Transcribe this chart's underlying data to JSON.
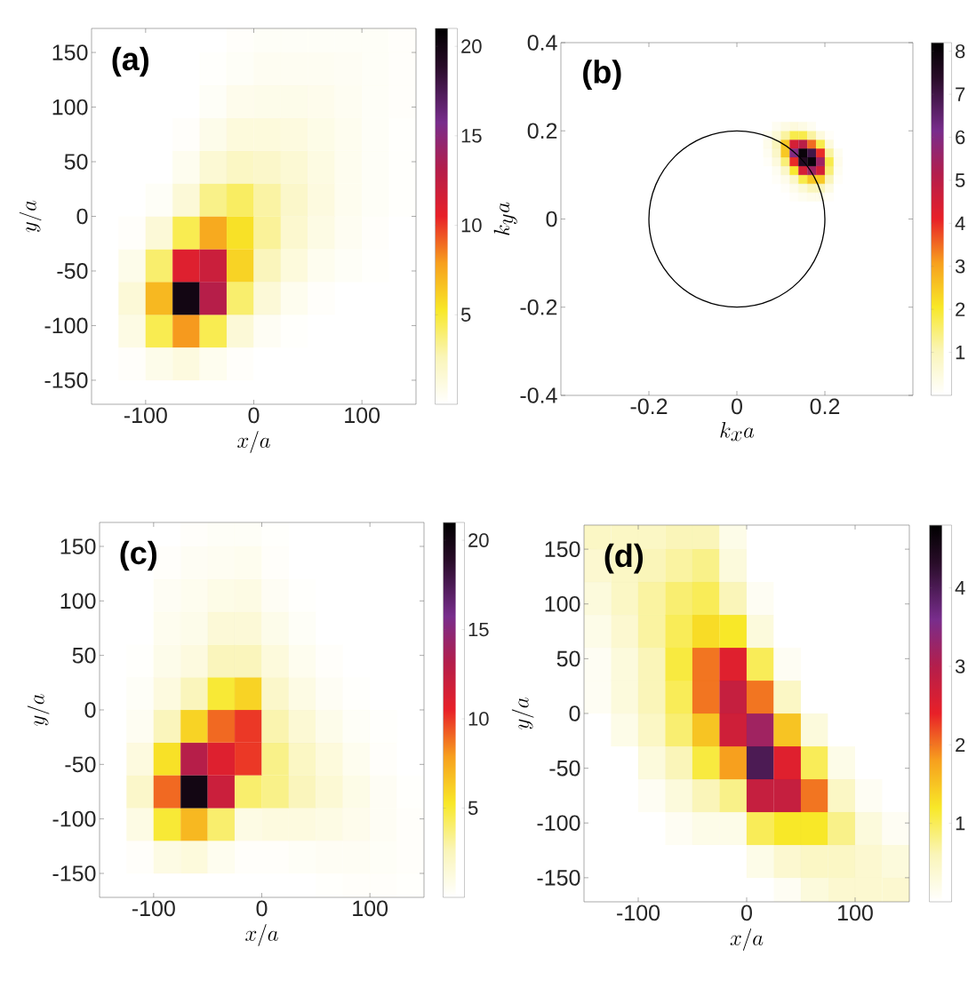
{
  "chart_data": [
    {
      "type": "heatmap",
      "title": "(a)",
      "xlabel": "x/a",
      "ylabel": "y/a",
      "x": [
        -137.5,
        -112.5,
        -87.5,
        -62.5,
        -37.5,
        -12.5,
        12.5,
        37.5,
        62.5,
        87.5,
        112.5,
        137.5
      ],
      "y": [
        165,
        135,
        105,
        75,
        45,
        15,
        -15,
        -45,
        -75,
        -105,
        -135,
        -165
      ],
      "cells": [
        [
          0,
          0,
          0,
          0,
          0,
          0.2,
          0.3,
          0.3,
          0.3,
          0.3,
          0.3,
          0.2
        ],
        [
          0,
          0,
          0,
          0,
          0.1,
          0.3,
          0.5,
          0.5,
          0.5,
          0.4,
          0.3,
          0.2
        ],
        [
          0,
          0,
          0,
          0,
          0.3,
          0.7,
          0.8,
          0.8,
          0.7,
          0.5,
          0.3,
          0.2
        ],
        [
          0,
          0,
          0,
          0.2,
          0.8,
          1.3,
          1.3,
          1.2,
          0.9,
          0.6,
          0.3,
          0.1
        ],
        [
          0,
          0,
          0,
          0.6,
          1.6,
          2.2,
          2,
          1.6,
          1.1,
          0.6,
          0.3,
          0.1
        ],
        [
          0,
          0,
          0.3,
          1.5,
          3.5,
          4.2,
          3,
          2,
          1.2,
          0.6,
          0.3,
          0.1
        ],
        [
          0,
          0.2,
          1.5,
          4.5,
          7.5,
          5.5,
          3.2,
          1.8,
          1,
          0.5,
          0.2,
          0
        ],
        [
          0,
          0.8,
          4,
          11,
          12,
          6,
          2.5,
          1.3,
          0.6,
          0.3,
          0.1,
          0
        ],
        [
          0,
          1.5,
          7,
          20,
          13,
          4,
          1.5,
          0.6,
          0.2,
          0,
          0,
          0
        ],
        [
          0,
          1,
          4.5,
          8,
          4.5,
          1.5,
          0.4,
          0.1,
          0,
          0,
          0,
          0
        ],
        [
          0,
          0.2,
          0.8,
          1.2,
          0.6,
          0.2,
          0,
          0,
          0,
          0,
          0,
          0
        ],
        [
          0,
          0,
          0,
          0,
          0,
          0,
          0,
          0,
          0,
          0,
          0,
          0
        ]
      ],
      "xlim": [
        -150,
        150
      ],
      "ylim": [
        -172,
        172
      ],
      "xticks": [
        -100,
        0,
        100
      ],
      "yticks": [
        -150,
        -100,
        -50,
        0,
        50,
        100,
        150
      ],
      "clim": [
        0,
        21
      ],
      "cticks": [
        5,
        10,
        15,
        20
      ]
    },
    {
      "type": "heatmap",
      "title": "(b)",
      "xlabel": "k_xa",
      "ylabel": "k_ya",
      "x": [
        0.07,
        0.09,
        0.11,
        0.13,
        0.15,
        0.17,
        0.19,
        0.21,
        0.23
      ],
      "y": [
        0.21,
        0.19,
        0.17,
        0.15,
        0.13,
        0.11,
        0.09,
        0.07,
        0.05
      ],
      "cells": [
        [
          0,
          0.2,
          0.4,
          0.5,
          0.4,
          0.2,
          0,
          0,
          0
        ],
        [
          0.2,
          0.6,
          1.2,
          1.8,
          1.8,
          1.2,
          0.5,
          0.1,
          0
        ],
        [
          0.3,
          1,
          2.5,
          4.5,
          5,
          3.5,
          1.8,
          0.5,
          0
        ],
        [
          0.2,
          0.8,
          2.5,
          6,
          8,
          7,
          4,
          1.2,
          0.2
        ],
        [
          0.1,
          0.5,
          1.5,
          4,
          7.5,
          8,
          5.5,
          1.8,
          0.3
        ],
        [
          0,
          0.2,
          0.8,
          2,
          4.5,
          5.5,
          4.5,
          1.5,
          0.2
        ],
        [
          0,
          0.1,
          0.3,
          0.8,
          1.8,
          2.5,
          2.5,
          1,
          0.1
        ],
        [
          0,
          0,
          0.1,
          0.3,
          0.6,
          1,
          1,
          0.4,
          0
        ],
        [
          0,
          0,
          0,
          0.1,
          0.2,
          0.3,
          0.3,
          0.1,
          0
        ]
      ],
      "xlim": [
        -0.4,
        0.4
      ],
      "ylim": [
        -0.4,
        0.4
      ],
      "xticks": [
        -0.2,
        0,
        0.2
      ],
      "yticks": [
        -0.4,
        -0.2,
        0,
        0.2,
        0.4
      ],
      "clim": [
        0,
        8.2
      ],
      "cticks": [
        1,
        2,
        3,
        4,
        5,
        6,
        7,
        8
      ]
    },
    {
      "type": "heatmap",
      "title": "(c)",
      "xlabel": "x/a",
      "ylabel": "y/a",
      "x": [
        -137.5,
        -112.5,
        -87.5,
        -62.5,
        -37.5,
        -12.5,
        12.5,
        37.5,
        62.5,
        87.5,
        112.5,
        137.5
      ],
      "y": [
        165,
        135,
        105,
        75,
        45,
        15,
        -15,
        -45,
        -75,
        -105,
        -135,
        -165
      ],
      "cells": [
        [
          0,
          0,
          0,
          0.2,
          0.3,
          0.3,
          0.1,
          0,
          0,
          0,
          0,
          0
        ],
        [
          0,
          0,
          0.2,
          0.4,
          0.5,
          0.6,
          0.2,
          0,
          0,
          0,
          0,
          0
        ],
        [
          0,
          0,
          0.4,
          0.6,
          0.9,
          1,
          0.4,
          0.1,
          0,
          0,
          0,
          0
        ],
        [
          0,
          0,
          0.6,
          0.8,
          1.5,
          1.5,
          0.8,
          0.3,
          0,
          0,
          0,
          0
        ],
        [
          0,
          0.1,
          0.8,
          1.2,
          2.5,
          2.5,
          1.3,
          0.6,
          0.2,
          0,
          0,
          0
        ],
        [
          0,
          0.3,
          1.2,
          2.5,
          5,
          6,
          2,
          1,
          0.4,
          0.1,
          0,
          0
        ],
        [
          0,
          0.5,
          2.5,
          6,
          9,
          10,
          2.8,
          1.6,
          0.8,
          0.3,
          0.1,
          0
        ],
        [
          0,
          1.2,
          5.5,
          13,
          11,
          10,
          3.5,
          2.2,
          1.3,
          0.6,
          0.2,
          0
        ],
        [
          0,
          2,
          9,
          20,
          12,
          4,
          3.5,
          2.5,
          1.6,
          0.9,
          0.4,
          0.1
        ],
        [
          0,
          1,
          5,
          7,
          4,
          1,
          1.2,
          1.2,
          1,
          0.7,
          0.4,
          0.2
        ],
        [
          0,
          0.2,
          1,
          1.3,
          0.6,
          0.2,
          0.2,
          0.3,
          0.4,
          0.4,
          0.3,
          0.2
        ],
        [
          0,
          0,
          0,
          0,
          0,
          0,
          0,
          0,
          0.1,
          0.2,
          0.2,
          0.1
        ]
      ],
      "xlim": [
        -150,
        150
      ],
      "ylim": [
        -172,
        172
      ],
      "xticks": [
        -100,
        0,
        100
      ],
      "yticks": [
        -150,
        -100,
        -50,
        0,
        50,
        100,
        150
      ],
      "clim": [
        0,
        21
      ],
      "cticks": [
        5,
        10,
        15,
        20
      ]
    },
    {
      "type": "heatmap",
      "title": "(d)",
      "xlabel": "x/a",
      "ylabel": "y/a",
      "x": [
        -137.5,
        -112.5,
        -87.5,
        -62.5,
        -37.5,
        -12.5,
        12.5,
        37.5,
        62.5,
        87.5,
        112.5,
        137.5
      ],
      "y": [
        165,
        135,
        105,
        75,
        45,
        15,
        -15,
        -45,
        -75,
        -105,
        -135,
        -165
      ],
      "cells": [
        [
          0.5,
          0.5,
          0.5,
          0.6,
          0.6,
          0.2,
          0,
          0,
          0,
          0,
          0,
          0
        ],
        [
          0.4,
          0.5,
          0.6,
          0.7,
          0.8,
          0.3,
          0,
          0,
          0,
          0,
          0,
          0
        ],
        [
          0.3,
          0.5,
          0.7,
          0.9,
          1,
          0.6,
          0.1,
          0,
          0,
          0,
          0,
          0
        ],
        [
          0.2,
          0.4,
          0.7,
          1,
          1.3,
          1.2,
          0.3,
          0,
          0,
          0,
          0,
          0
        ],
        [
          0.1,
          0.3,
          0.6,
          1.1,
          2,
          2.5,
          1,
          0.1,
          0,
          0,
          0,
          0
        ],
        [
          0.1,
          0.3,
          0.6,
          1,
          2,
          2.8,
          2,
          0.5,
          0,
          0,
          0,
          0
        ],
        [
          0,
          0.2,
          0.5,
          0.9,
          1.5,
          2.7,
          3.2,
          1.5,
          0.3,
          0,
          0,
          0
        ],
        [
          0,
          0,
          0.3,
          0.6,
          1.1,
          1.8,
          4,
          2.5,
          1,
          0.2,
          0,
          0
        ],
        [
          0,
          0,
          0.1,
          0.3,
          0.6,
          0.8,
          2.8,
          2.8,
          2,
          0.5,
          0.1,
          0
        ],
        [
          0,
          0,
          0,
          0.1,
          0.2,
          0.2,
          1,
          1.2,
          1.2,
          0.8,
          0.3,
          0.1
        ],
        [
          0,
          0,
          0,
          0,
          0,
          0,
          0.2,
          0.4,
          0.5,
          0.5,
          0.4,
          0.3
        ],
        [
          0,
          0,
          0,
          0,
          0,
          0,
          0,
          0.1,
          0.3,
          0.4,
          0.4,
          0.4
        ]
      ],
      "xlim": [
        -150,
        150
      ],
      "ylim": [
        -172,
        172
      ],
      "xticks": [
        -100,
        0,
        100
      ],
      "yticks": [
        -150,
        -100,
        -50,
        0,
        50,
        100,
        150
      ],
      "clim": [
        0,
        4.8
      ],
      "cticks": [
        1,
        2,
        3,
        4
      ]
    }
  ]
}
